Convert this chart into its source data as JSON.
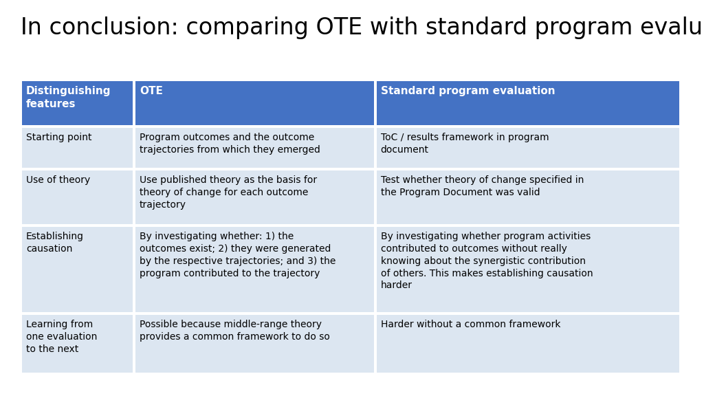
{
  "title": "In conclusion: comparing OTE with standard program evaluation",
  "title_fontsize": 24,
  "title_color": "#000000",
  "background_color": "#ffffff",
  "header_bg_color": "#4472C4",
  "header_text_color": "#ffffff",
  "row_bg_color": "#dce6f1",
  "border_color": "#ffffff",
  "col_headers": [
    "Distinguishing\nfeatures",
    "OTE",
    "Standard program evaluation"
  ],
  "rows": [
    {
      "col0": "Starting point",
      "col1": "Program outcomes and the outcome\ntrajectories from which they emerged",
      "col2": "ToC / results framework in program\ndocument"
    },
    {
      "col0": "Use of theory",
      "col1": "Use published theory as the basis for\ntheory of change for each outcome\ntrajectory",
      "col2": "Test whether theory of change specified in\nthe Program Document was valid"
    },
    {
      "col0": "Establishing\ncausation",
      "col1": "By investigating whether: 1) the\noutcomes exist; 2) they were generated\nby the respective trajectories; and 3) the\nprogram contributed to the trajectory",
      "col2": "By investigating whether program activities\ncontributed to outcomes without really\nknowing about the synergistic contribution\nof others. This makes establishing causation\nharder"
    },
    {
      "col0": "Learning from\none evaluation\nto the next",
      "col1": "Possible because middle-range theory\nprovides a common framework to do so",
      "col2": "Harder without a common framework"
    }
  ],
  "cell_text_fontsize": 10.0,
  "header_text_fontsize": 11.0
}
